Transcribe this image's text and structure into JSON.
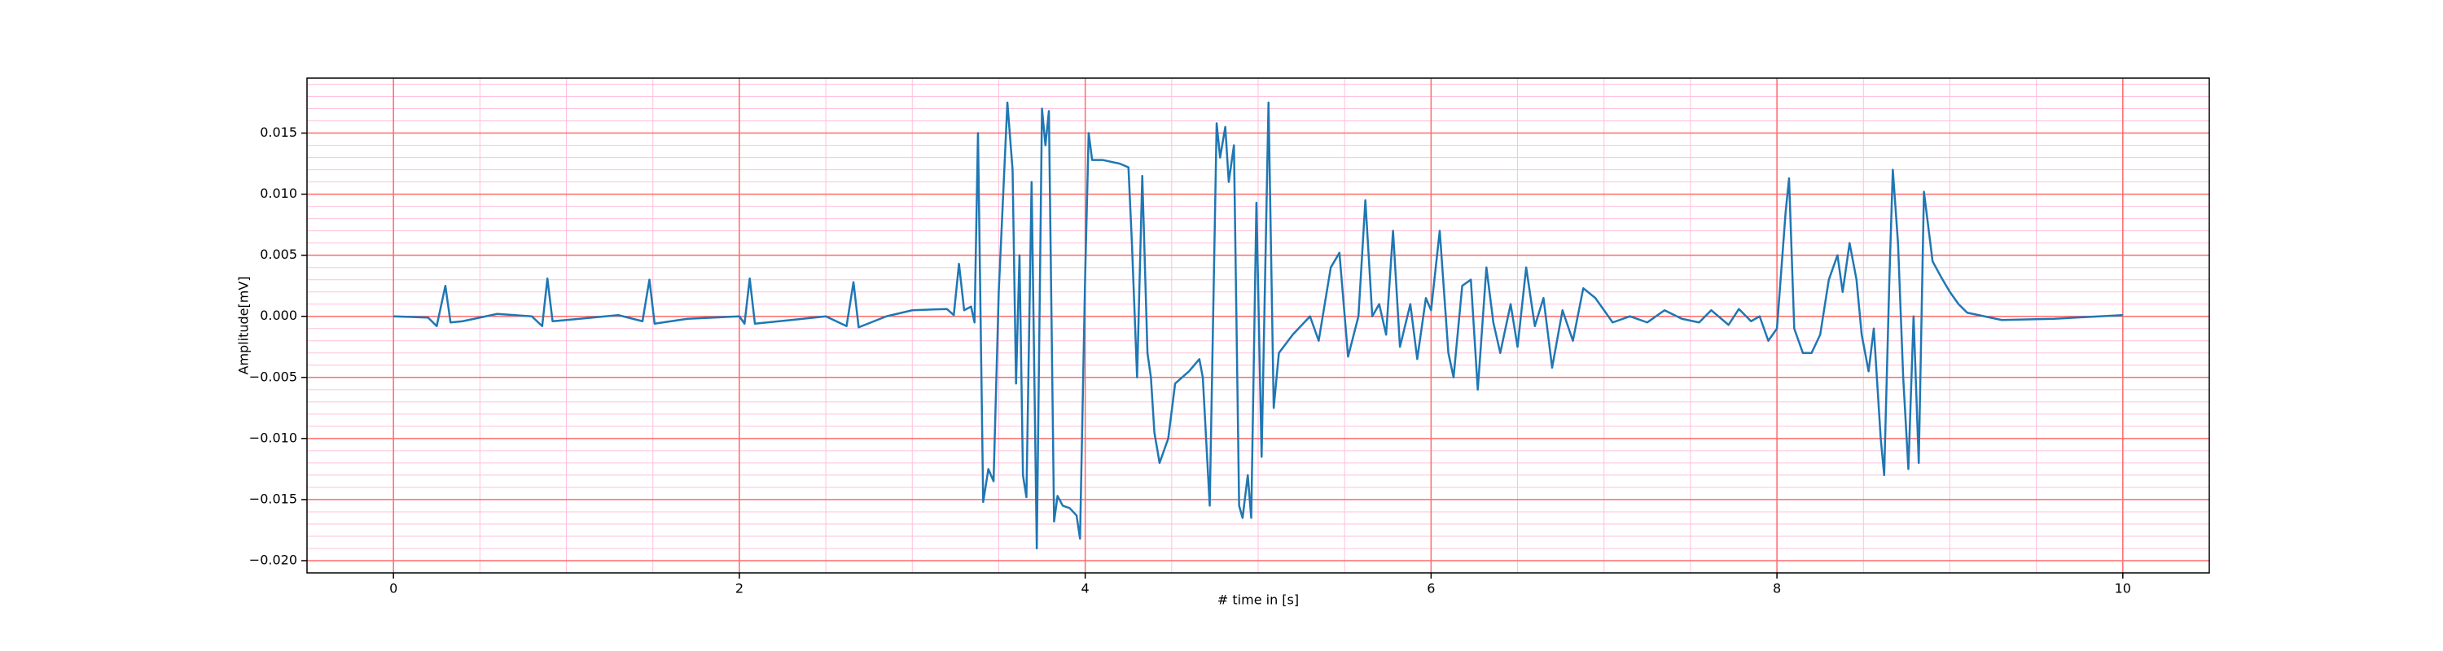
{
  "chart_data": {
    "type": "line",
    "x_label": "# time in [s]",
    "y_label": "Amplitude[mV]",
    "color": "#1f77b4",
    "grid": true,
    "minor_grid": true,
    "xlim": [
      -0.5,
      10.5
    ],
    "ylim": [
      -0.021,
      0.0195
    ],
    "xticks": [
      0,
      2,
      4,
      6,
      8,
      10
    ],
    "yticks": [
      {
        "value": -0.02,
        "label": "−0.020"
      },
      {
        "value": -0.015,
        "label": "−0.015"
      },
      {
        "value": -0.01,
        "label": "−0.010"
      },
      {
        "value": -0.005,
        "label": "−0.005"
      },
      {
        "value": 0,
        "label": "0.000"
      },
      {
        "value": 0.005,
        "label": "0.005"
      },
      {
        "value": 0.01,
        "label": "0.010"
      },
      {
        "value": 0.015,
        "label": "0.015"
      }
    ],
    "x": [
      0,
      0.2,
      0.25,
      0.3,
      0.33,
      0.4,
      0.6,
      0.8,
      0.86,
      0.89,
      0.92,
      1.0,
      1.3,
      1.44,
      1.48,
      1.51,
      1.7,
      2.0,
      2.03,
      2.06,
      2.09,
      2.3,
      2.5,
      2.62,
      2.66,
      2.69,
      2.85,
      3.0,
      3.2,
      3.24,
      3.27,
      3.3,
      3.34,
      3.36,
      3.38,
      3.41,
      3.44,
      3.47,
      3.5,
      3.55,
      3.58,
      3.6,
      3.62,
      3.64,
      3.66,
      3.69,
      3.72,
      3.75,
      3.77,
      3.79,
      3.82,
      3.84,
      3.87,
      3.91,
      3.95,
      3.97,
      4.0,
      4.02,
      4.04,
      4.1,
      4.2,
      4.25,
      4.27,
      4.3,
      4.33,
      4.36,
      4.38,
      4.4,
      4.43,
      4.48,
      4.52,
      4.6,
      4.66,
      4.68,
      4.72,
      4.76,
      4.78,
      4.81,
      4.83,
      4.86,
      4.89,
      4.91,
      4.94,
      4.96,
      4.99,
      5.02,
      5.06,
      5.09,
      5.12,
      5.2,
      5.3,
      5.35,
      5.42,
      5.47,
      5.52,
      5.58,
      5.62,
      5.66,
      5.7,
      5.74,
      5.78,
      5.82,
      5.88,
      5.92,
      5.97,
      6.0,
      6.05,
      6.1,
      6.13,
      6.18,
      6.23,
      6.27,
      6.32,
      6.36,
      6.4,
      6.46,
      6.5,
      6.55,
      6.6,
      6.65,
      6.7,
      6.76,
      6.82,
      6.88,
      6.95,
      7.05,
      7.15,
      7.25,
      7.35,
      7.45,
      7.55,
      7.62,
      7.72,
      7.78,
      7.85,
      7.9,
      7.95,
      8.0,
      8.05,
      8.07,
      8.1,
      8.15,
      8.2,
      8.25,
      8.3,
      8.35,
      8.38,
      8.42,
      8.46,
      8.49,
      8.53,
      8.56,
      8.6,
      8.62,
      8.65,
      8.67,
      8.7,
      8.73,
      8.76,
      8.79,
      8.82,
      8.85,
      8.9,
      8.95,
      9.0,
      9.05,
      9.1,
      9.3,
      9.6,
      10.0
    ],
    "values": [
      0,
      -0.0001,
      -0.0008,
      0.0025,
      -0.0005,
      -0.0004,
      0.0002,
      0,
      -0.0008,
      0.0031,
      -0.0004,
      -0.0003,
      0.0001,
      -0.0004,
      0.003,
      -0.0006,
      -0.0002,
      0,
      -0.0006,
      0.0031,
      -0.0006,
      -0.0003,
      0,
      -0.0008,
      0.0028,
      -0.0009,
      0,
      0.0005,
      0.0006,
      0.0001,
      0.0043,
      0.0005,
      0.0008,
      -0.0005,
      0.015,
      -0.0152,
      -0.0125,
      -0.0135,
      0.002,
      0.0175,
      0.012,
      -0.0055,
      0.005,
      -0.013,
      -0.0148,
      0.011,
      -0.019,
      0.017,
      0.014,
      0.0168,
      -0.0168,
      -0.0147,
      -0.0155,
      -0.0157,
      -0.0163,
      -0.0182,
      0.0035,
      0.015,
      0.0128,
      0.0128,
      0.0125,
      0.0122,
      0.006,
      -0.005,
      0.0115,
      -0.003,
      -0.005,
      -0.0095,
      -0.012,
      -0.01,
      -0.0055,
      -0.0045,
      -0.0035,
      -0.005,
      -0.0155,
      0.0158,
      0.013,
      0.0155,
      0.011,
      0.014,
      -0.0155,
      -0.0165,
      -0.013,
      -0.0165,
      0.0093,
      -0.0115,
      0.0175,
      -0.0075,
      -0.003,
      -0.0015,
      0,
      -0.002,
      0.004,
      0.0052,
      -0.0033,
      0,
      0.0095,
      0,
      0.001,
      -0.0015,
      0.007,
      -0.0025,
      0.001,
      -0.0035,
      0.0015,
      0.0005,
      0.007,
      -0.003,
      -0.005,
      0.0025,
      0.003,
      -0.006,
      0.004,
      -0.0005,
      -0.003,
      0.001,
      -0.0025,
      0.004,
      -0.0008,
      0.0015,
      -0.0042,
      0.0005,
      -0.002,
      0.0023,
      0.0015,
      -0.0005,
      0,
      -0.0005,
      0.0005,
      -0.0002,
      -0.0005,
      0.0005,
      -0.0007,
      0.0006,
      -0.0004,
      0,
      -0.002,
      -0.001,
      0.0085,
      0.0113,
      -0.001,
      -0.003,
      -0.003,
      -0.0015,
      0.003,
      0.005,
      0.002,
      0.006,
      0.003,
      -0.0015,
      -0.0045,
      -0.001,
      -0.01,
      -0.013,
      0.003,
      0.012,
      0.006,
      -0.005,
      -0.0125,
      0,
      -0.012,
      0.0102,
      0.0045,
      0.0032,
      0.002,
      0.001,
      0.0003,
      -0.0003,
      -0.0002,
      0.0001
    ]
  }
}
